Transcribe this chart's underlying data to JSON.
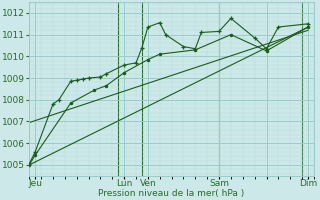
{
  "background_color": "#cce8e8",
  "grid_color_major": "#99cccc",
  "grid_color_minor": "#b8dede",
  "line_color": "#1a5c1a",
  "vline_color": "#2a6a2a",
  "xlabel": "Pression niveau de la mer( hPa )",
  "ylim": [
    1004.5,
    1012.5
  ],
  "xlim": [
    0,
    24
  ],
  "yticks": [
    1005,
    1006,
    1007,
    1008,
    1009,
    1010,
    1011,
    1012
  ],
  "xtick_positions": [
    0.5,
    8,
    10,
    16,
    20,
    23.5
  ],
  "xtick_labels": [
    "Jeu",
    "Lun",
    "Ven",
    "Sam",
    "",
    "Dim"
  ],
  "vlines": [
    7.5,
    9.5,
    16,
    23
  ],
  "line1_x": [
    0,
    0.5,
    2,
    2.5,
    3.5,
    4,
    4.5,
    5,
    6,
    6.5,
    8,
    9,
    9.5,
    10,
    11,
    11.5,
    13,
    14,
    14.5,
    16,
    17,
    19,
    20,
    21,
    23.5
  ],
  "line1_y": [
    1005.05,
    1005.6,
    1007.8,
    1008.0,
    1008.85,
    1008.9,
    1008.95,
    1009.0,
    1009.05,
    1009.2,
    1009.6,
    1009.7,
    1010.4,
    1011.35,
    1011.55,
    1011.0,
    1010.45,
    1010.35,
    1011.1,
    1011.15,
    1011.75,
    1010.85,
    1010.35,
    1011.35,
    1011.5
  ],
  "line2_x": [
    0,
    0.5,
    3.5,
    5.5,
    6.5,
    8,
    10,
    11,
    14,
    17,
    20,
    23.5
  ],
  "line2_y": [
    1005.0,
    1005.45,
    1007.85,
    1008.45,
    1008.65,
    1009.25,
    1009.85,
    1010.1,
    1010.3,
    1011.0,
    1010.25,
    1011.35
  ],
  "trend1_x": [
    0,
    23.5
  ],
  "trend1_y": [
    1005.0,
    1011.35
  ],
  "trend2_x": [
    0,
    23.5
  ],
  "trend2_y": [
    1006.95,
    1011.2
  ],
  "figsize": [
    3.2,
    2.0
  ],
  "dpi": 100
}
